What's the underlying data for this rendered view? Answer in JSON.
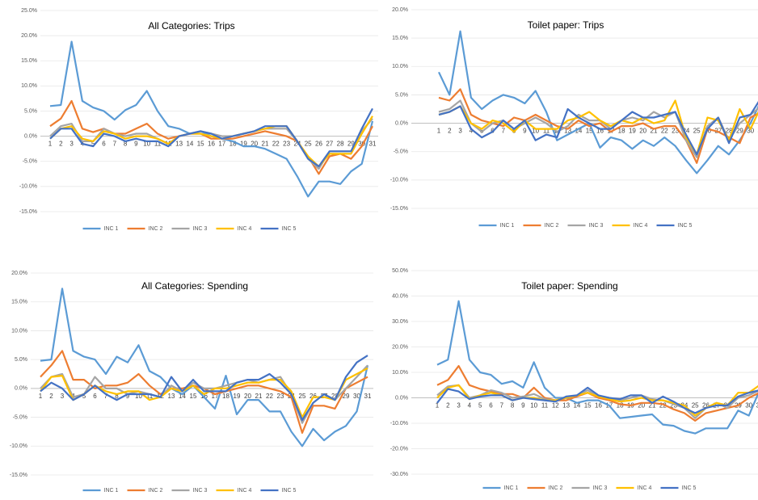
{
  "chart_data": [
    {
      "type": "line",
      "title": "All Categories: Trips",
      "categories": [
        "1",
        "2",
        "3",
        "4",
        "5",
        "6",
        "7",
        "8",
        "9",
        "10",
        "11",
        "12",
        "13",
        "14",
        "15",
        "16",
        "17",
        "18",
        "19",
        "20",
        "21",
        "22",
        "23",
        "24",
        "25",
        "26",
        "27",
        "28",
        "29",
        "30",
        "31"
      ],
      "ylim": [
        -15,
        25
      ],
      "yticks": [
        {
          "value": -15,
          "label": "-15.0%"
        },
        {
          "value": -10,
          "label": "-10.0%"
        },
        {
          "value": -5,
          "label": "-5.0%"
        },
        {
          "value": 0,
          "label": "0.0%"
        },
        {
          "value": 5,
          "label": "5.0%"
        },
        {
          "value": 10,
          "label": "10.0%"
        },
        {
          "value": 15,
          "label": "15.0%"
        },
        {
          "value": 20,
          "label": "20.0%"
        },
        {
          "value": 25,
          "label": "25.0%"
        }
      ],
      "grid": true,
      "series": [
        {
          "name": "INC 1",
          "color": "#5b9bd5",
          "values": [
            6,
            6.2,
            18.8,
            7,
            5.7,
            5,
            3.3,
            5.2,
            6.2,
            9,
            5,
            2,
            1.5,
            0.5,
            1,
            0,
            -0.5,
            -1,
            -2,
            -2,
            -2.5,
            -3.5,
            -4.5,
            -8,
            -12,
            -9,
            -9,
            -9.5,
            -7,
            -5.5,
            3
          ]
        },
        {
          "name": "INC 2",
          "color": "#ed7d31",
          "values": [
            2,
            3.5,
            7,
            1.5,
            0.8,
            1.5,
            0.5,
            0.5,
            1.5,
            2.5,
            0.5,
            -0.5,
            0,
            0.5,
            0.5,
            -0.5,
            -0.5,
            -0.5,
            0,
            0.5,
            1,
            0.5,
            0,
            -1,
            -4,
            -7.5,
            -4,
            -3.5,
            -4.5,
            -2,
            2
          ]
        },
        {
          "name": "INC 3",
          "color": "#a5a5a5",
          "values": [
            0,
            2,
            2.5,
            -1,
            -1,
            1.5,
            0.5,
            0,
            0.5,
            0.5,
            -0.5,
            -1.5,
            0,
            0.5,
            1,
            0.5,
            0,
            0,
            0.5,
            1,
            1.5,
            1.5,
            1.5,
            -1,
            -4.5,
            -6.5,
            -3,
            -3,
            -3,
            1,
            3.5
          ]
        },
        {
          "name": "INC 4",
          "color": "#ffc000",
          "values": [
            -0.5,
            1.5,
            2,
            -0.5,
            -1,
            1,
            0.5,
            -0.5,
            0,
            0,
            -0.5,
            -1.5,
            0,
            0.5,
            0.5,
            0,
            -0.5,
            0,
            0.5,
            1,
            1.5,
            2,
            2,
            -1,
            -4,
            -6,
            -3.5,
            -3.5,
            -3.5,
            0.5,
            4
          ]
        },
        {
          "name": "INC 5",
          "color": "#4472c4",
          "values": [
            -0.5,
            1.5,
            1.5,
            -1.5,
            -2,
            0.5,
            0,
            -1,
            -0.5,
            -1,
            -1,
            -2,
            0,
            0.5,
            1,
            0.5,
            -0.5,
            0,
            0.5,
            1,
            2,
            2,
            2,
            -1,
            -4.5,
            -6,
            -3,
            -3,
            -3,
            1.5,
            5.5
          ]
        }
      ]
    },
    {
      "type": "line",
      "title": "Toilet paper: Trips",
      "categories": [
        "1",
        "2",
        "3",
        "4",
        "5",
        "6",
        "7",
        "8",
        "9",
        "10",
        "11",
        "12",
        "13",
        "14",
        "15",
        "16",
        "17",
        "18",
        "19",
        "20",
        "21",
        "22",
        "23",
        "24",
        "25",
        "26",
        "27",
        "28",
        "29",
        "30",
        "31"
      ],
      "ylim": [
        -15,
        20
      ],
      "yticks": [
        {
          "value": -15,
          "label": "-15.0%"
        },
        {
          "value": -10,
          "label": "-10.0%"
        },
        {
          "value": -5,
          "label": "-5.0%"
        },
        {
          "value": 0,
          "label": "0.0%"
        },
        {
          "value": 5,
          "label": "5.0%"
        },
        {
          "value": 10,
          "label": "10.0%"
        },
        {
          "value": 15,
          "label": "15.0%"
        },
        {
          "value": 20,
          "label": "20.0%"
        }
      ],
      "grid": true,
      "series": [
        {
          "name": "INC 1",
          "color": "#5b9bd5",
          "values": [
            9,
            5,
            16.2,
            4.5,
            2.5,
            4,
            5,
            4.5,
            3.5,
            5.7,
            2,
            -3,
            -2,
            -1,
            0,
            -4.3,
            -2.5,
            -3,
            -4.5,
            -3,
            -4,
            -2.5,
            -4,
            -6.5,
            -8.8,
            -6.5,
            -4,
            -5.5,
            -3,
            0,
            4
          ]
        },
        {
          "name": "INC 2",
          "color": "#ed7d31",
          "values": [
            4.5,
            4,
            6,
            1.5,
            0.5,
            0,
            -0.5,
            1,
            0.5,
            1.5,
            0.5,
            -0.5,
            -1,
            0.5,
            -0.5,
            0,
            -1.5,
            -0.5,
            -0.5,
            0,
            -1,
            -0.5,
            -0.5,
            -3,
            -7,
            -1,
            -1.5,
            -2.5,
            -3.5,
            1,
            2
          ]
        },
        {
          "name": "INC 3",
          "color": "#a5a5a5",
          "values": [
            2,
            2.5,
            4,
            0,
            -1.5,
            0,
            0.5,
            -1,
            0,
            1,
            0,
            -1.5,
            -0.5,
            1.5,
            0.5,
            0.5,
            -1,
            0.5,
            1,
            0.5,
            2,
            1,
            2,
            -3,
            -6,
            -0.5,
            1,
            -3,
            0,
            1.5,
            3
          ]
        },
        {
          "name": "INC 4",
          "color": "#ffc000",
          "values": [
            1.5,
            2,
            3,
            0,
            -1,
            0.5,
            0,
            -1.5,
            0.5,
            -1,
            -1,
            -1,
            0.5,
            1,
            2,
            0.5,
            -0.5,
            0.5,
            0,
            1,
            0,
            0.5,
            4,
            -2.5,
            -5.5,
            1,
            0.5,
            -3,
            2.5,
            -1,
            3
          ]
        },
        {
          "name": "INC 5",
          "color": "#4472c4",
          "values": [
            1.5,
            2,
            3,
            -1,
            -2.5,
            -1.5,
            0.5,
            -1,
            0.5,
            -3,
            -2,
            -2.5,
            2.5,
            1,
            0,
            -1,
            -1,
            0.5,
            2,
            1,
            1,
            1.5,
            2,
            -2,
            -5.5,
            -1,
            1,
            -3.5,
            1,
            1.5,
            4.5
          ]
        }
      ]
    },
    {
      "type": "line",
      "title": "All Categories: Spending",
      "categories": [
        "1",
        "2",
        "3",
        "4",
        "5",
        "6",
        "7",
        "8",
        "9",
        "10",
        "11",
        "12",
        "13",
        "14",
        "15",
        "16",
        "17",
        "18",
        "19",
        "20",
        "21",
        "22",
        "23",
        "24",
        "25",
        "26",
        "27",
        "28",
        "29",
        "30",
        "31"
      ],
      "ylim": [
        -15,
        20
      ],
      "yticks": [
        {
          "value": -15,
          "label": "-15.0%"
        },
        {
          "value": -10,
          "label": "-10.0%"
        },
        {
          "value": -5,
          "label": "-5.0%"
        },
        {
          "value": 0,
          "label": "0.0%"
        },
        {
          "value": 5,
          "label": "5.0%"
        },
        {
          "value": 10,
          "label": "10.0%"
        },
        {
          "value": 15,
          "label": "15.0%"
        },
        {
          "value": 20,
          "label": "20.0%"
        }
      ],
      "grid": true,
      "series": [
        {
          "name": "INC 1",
          "color": "#5b9bd5",
          "values": [
            4.8,
            5,
            17.3,
            6.5,
            5.5,
            5,
            2.5,
            5.5,
            4.5,
            7.5,
            3,
            2,
            0,
            -1,
            0.5,
            -1.5,
            -3.5,
            2.2,
            -4.5,
            -2,
            -2,
            -4,
            -4,
            -7.5,
            -10,
            -7,
            -9,
            -7.5,
            -6.5,
            -4,
            4
          ]
        },
        {
          "name": "INC 2",
          "color": "#ed7d31",
          "values": [
            2,
            4,
            6.5,
            1.5,
            1.5,
            0,
            0.5,
            0.5,
            1,
            2.5,
            0.5,
            -1,
            0,
            0,
            0.5,
            0,
            -1,
            -0.5,
            0,
            0.5,
            0.5,
            0,
            -0.5,
            -1.5,
            -7.7,
            -3,
            -3,
            -3.5,
            0,
            1,
            2
          ]
        },
        {
          "name": "INC 3",
          "color": "#a5a5a5",
          "values": [
            0,
            2,
            2.5,
            -1.5,
            -1,
            2,
            0,
            0,
            -1,
            -0.5,
            -1,
            -1.5,
            0.5,
            -0.5,
            1,
            0,
            0,
            0.5,
            1,
            1.5,
            1,
            1.5,
            2,
            -1,
            -6,
            -2.5,
            -1,
            -2,
            0,
            2,
            4
          ]
        },
        {
          "name": "INC 4",
          "color": "#ffc000",
          "values": [
            -0.5,
            2,
            2.2,
            -2,
            -1,
            0.5,
            -0.5,
            -1,
            -0.5,
            -0.5,
            -2,
            -1.5,
            0,
            -0.5,
            0.5,
            -1,
            0,
            0,
            0.5,
            1,
            1,
            1.5,
            1.5,
            -0.5,
            -5,
            -1.5,
            -1.5,
            -2,
            1.5,
            2.5,
            3.5
          ]
        },
        {
          "name": "INC 5",
          "color": "#4472c4",
          "values": [
            -0.5,
            1,
            0,
            -2,
            -1,
            0.5,
            -1,
            -2,
            -1,
            -1,
            -1,
            -1.5,
            2,
            -0.5,
            1.5,
            -0.5,
            -0.5,
            -0.5,
            1,
            1.5,
            1.5,
            2.5,
            1,
            -1,
            -5.5,
            -2.5,
            -1,
            -2,
            2,
            4.5,
            5.7
          ]
        }
      ]
    },
    {
      "type": "line",
      "title": "Toilet paper: Spending",
      "categories": [
        "1",
        "2",
        "3",
        "4",
        "5",
        "6",
        "7",
        "8",
        "9",
        "10",
        "11",
        "12",
        "13",
        "14",
        "15",
        "16",
        "17",
        "18",
        "19",
        "20",
        "21",
        "22",
        "23",
        "24",
        "25",
        "26",
        "27",
        "28",
        "29",
        "30",
        "31"
      ],
      "ylim": [
        -30,
        50
      ],
      "yticks": [
        {
          "value": -30,
          "label": "-30.0%"
        },
        {
          "value": -20,
          "label": "-20.0%"
        },
        {
          "value": -10,
          "label": "-10.0%"
        },
        {
          "value": 0,
          "label": "0.0%"
        },
        {
          "value": 10,
          "label": "10.0%"
        },
        {
          "value": 20,
          "label": "20.0%"
        },
        {
          "value": 30,
          "label": "30.0%"
        },
        {
          "value": 40,
          "label": "40.0%"
        },
        {
          "value": 50,
          "label": "50.0%"
        }
      ],
      "grid": true,
      "series": [
        {
          "name": "INC 1",
          "color": "#5b9bd5",
          "values": [
            13,
            15,
            38,
            15,
            10,
            9,
            5.5,
            6.5,
            4,
            14,
            4,
            0,
            0,
            -2,
            -1,
            -1,
            -3,
            -8,
            -7.5,
            -7,
            -6.5,
            -10.5,
            -11,
            -13,
            -14,
            -12,
            -12,
            -12,
            -5,
            -7,
            3
          ]
        },
        {
          "name": "INC 2",
          "color": "#ed7d31",
          "values": [
            5,
            7,
            12.5,
            5,
            3.5,
            2.5,
            1.5,
            1.5,
            0,
            4,
            0,
            -1,
            -1,
            0.5,
            2,
            0,
            -1,
            -2.5,
            -3,
            -2,
            -2,
            -2.5,
            -4.5,
            -6,
            -9,
            -6,
            -5,
            -4,
            -3,
            0,
            2
          ]
        },
        {
          "name": "INC 3",
          "color": "#a5a5a5",
          "values": [
            1,
            4.5,
            5,
            0,
            1,
            3,
            2,
            0,
            0.5,
            1.5,
            -0.5,
            -1,
            0,
            1,
            3,
            0.5,
            0,
            -1,
            0,
            1,
            -0.5,
            -1,
            -2.5,
            -4,
            -8,
            -4,
            -2,
            -4,
            0,
            1,
            3
          ]
        },
        {
          "name": "INC 4",
          "color": "#ffc000",
          "values": [
            0,
            4,
            5,
            -0.5,
            1,
            2,
            1,
            -1,
            0,
            0,
            -1,
            -1,
            0,
            1,
            2,
            0.5,
            -0.5,
            -1.5,
            -1,
            0,
            -1,
            -1,
            -2,
            -3,
            -7,
            -4,
            -2,
            -3,
            2,
            2,
            5
          ]
        },
        {
          "name": "INC 5",
          "color": "#4472c4",
          "values": [
            -2,
            3.5,
            2.5,
            -0.5,
            0.5,
            1,
            1,
            -1,
            0,
            -0.5,
            -1,
            -1.5,
            0.5,
            1,
            4,
            1,
            0,
            -0.5,
            1,
            1,
            -2,
            0.5,
            -1.5,
            -4,
            -6,
            -4,
            -3,
            -3,
            0.5,
            2,
            3
          ]
        }
      ]
    }
  ]
}
